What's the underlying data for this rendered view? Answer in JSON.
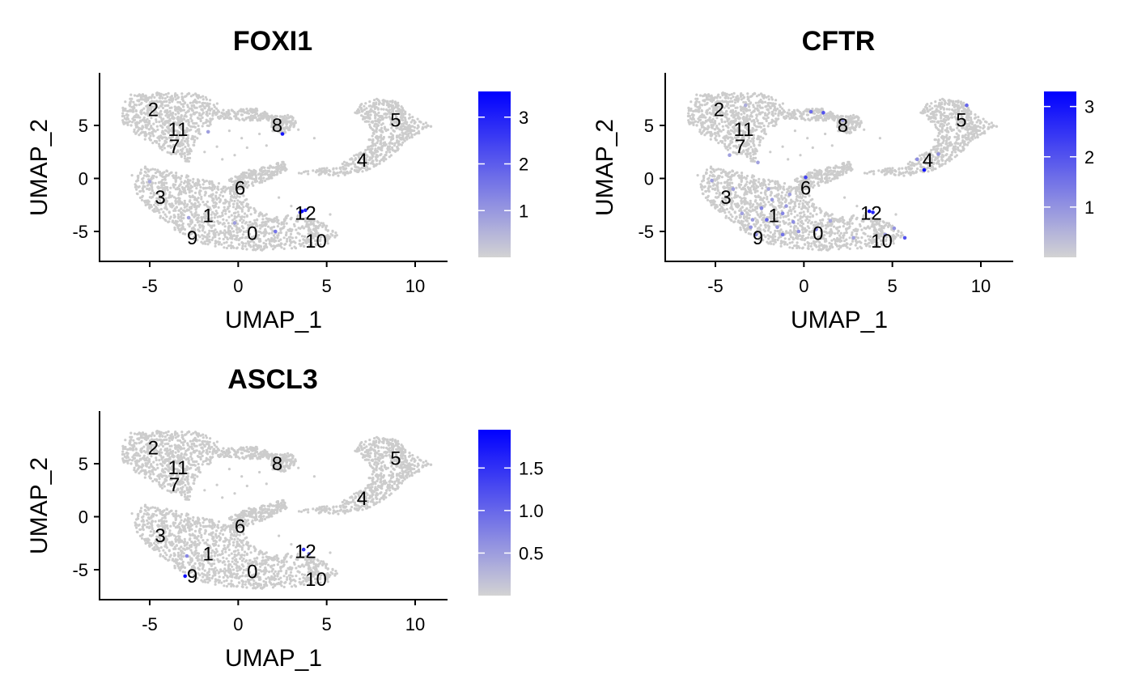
{
  "chart_data": [
    {
      "type": "scatter",
      "title": "FOXI1",
      "xlabel": "UMAP_1",
      "ylabel": "UMAP_2",
      "xlim": [
        -8,
        12
      ],
      "ylim": [
        -7.7,
        9.5
      ],
      "xticks": [
        "-5",
        "0",
        "5",
        "10"
      ],
      "yticks": [
        "-5",
        "0",
        "5"
      ],
      "grid": false,
      "legend": "right",
      "colorbar": {
        "min": 0,
        "max": 3.55,
        "ticks": [
          "1",
          "2",
          "3"
        ],
        "low_color": "#d3d3d3",
        "high_color": "#0000ff"
      },
      "cluster_labels": [
        {
          "label": "0",
          "x": 0.8,
          "y": -5.2
        },
        {
          "label": "1",
          "x": -1.7,
          "y": -3.5
        },
        {
          "label": "2",
          "x": -4.8,
          "y": 6.5
        },
        {
          "label": "3",
          "x": -4.4,
          "y": -1.8
        },
        {
          "label": "4",
          "x": 7.0,
          "y": 1.7
        },
        {
          "label": "5",
          "x": 8.9,
          "y": 5.5
        },
        {
          "label": "6",
          "x": 0.1,
          "y": -0.9
        },
        {
          "label": "7",
          "x": -3.6,
          "y": 3.0
        },
        {
          "label": "8",
          "x": 2.2,
          "y": 5.0
        },
        {
          "label": "9",
          "x": -2.6,
          "y": -5.6
        },
        {
          "label": "10",
          "x": 4.4,
          "y": -5.9
        },
        {
          "label": "11",
          "x": -3.4,
          "y": 4.6
        },
        {
          "label": "12",
          "x": 3.8,
          "y": -3.3
        }
      ],
      "highlights": [
        {
          "x": 2.5,
          "y": 4.2,
          "v": 3.2
        },
        {
          "x": 3.6,
          "y": -3.1,
          "v": 3.4
        },
        {
          "x": 3.8,
          "y": -3.0,
          "v": 3.0
        },
        {
          "x": 3.5,
          "y": -3.2,
          "v": 2.6
        },
        {
          "x": -1.7,
          "y": 4.4,
          "v": 0.9
        },
        {
          "x": -2.8,
          "y": -3.7,
          "v": 0.8
        },
        {
          "x": 2.1,
          "y": -5.0,
          "v": 1.6
        },
        {
          "x": -0.2,
          "y": -4.2,
          "v": 0.9
        },
        {
          "x": -5.0,
          "y": -0.3,
          "v": 0.7
        }
      ]
    },
    {
      "type": "scatter",
      "title": "CFTR",
      "xlabel": "UMAP_1",
      "ylabel": "UMAP_2",
      "xlim": [
        -8,
        12
      ],
      "ylim": [
        -7.7,
        9.5
      ],
      "xticks": [
        "-5",
        "0",
        "5",
        "10"
      ],
      "yticks": [
        "-5",
        "0",
        "5"
      ],
      "grid": false,
      "legend": "right",
      "colorbar": {
        "min": 0,
        "max": 3.3,
        "ticks": [
          "1",
          "2",
          "3"
        ],
        "low_color": "#d3d3d3",
        "high_color": "#0000ff"
      },
      "cluster_labels": [
        {
          "label": "0",
          "x": 0.8,
          "y": -5.2
        },
        {
          "label": "1",
          "x": -1.7,
          "y": -3.5
        },
        {
          "label": "2",
          "x": -4.8,
          "y": 6.5
        },
        {
          "label": "3",
          "x": -4.4,
          "y": -1.8
        },
        {
          "label": "4",
          "x": 7.0,
          "y": 1.7
        },
        {
          "label": "5",
          "x": 8.9,
          "y": 5.5
        },
        {
          "label": "6",
          "x": 0.1,
          "y": -0.9
        },
        {
          "label": "7",
          "x": -3.6,
          "y": 3.0
        },
        {
          "label": "8",
          "x": 2.2,
          "y": 5.0
        },
        {
          "label": "9",
          "x": -2.6,
          "y": -5.6
        },
        {
          "label": "10",
          "x": 4.4,
          "y": -5.9
        },
        {
          "label": "11",
          "x": -3.4,
          "y": 4.6
        },
        {
          "label": "12",
          "x": 3.8,
          "y": -3.3
        }
      ],
      "highlights": [
        {
          "x": 3.7,
          "y": -3.1,
          "v": 3.0
        },
        {
          "x": 3.9,
          "y": -3.2,
          "v": 2.7
        },
        {
          "x": 6.8,
          "y": 0.8,
          "v": 3.1
        },
        {
          "x": 0.1,
          "y": 0.1,
          "v": 2.3
        },
        {
          "x": 1.1,
          "y": 6.2,
          "v": 2.0
        },
        {
          "x": 0.4,
          "y": 6.3,
          "v": 1.6
        },
        {
          "x": 9.2,
          "y": 6.9,
          "v": 1.7
        },
        {
          "x": 5.7,
          "y": -5.6,
          "v": 2.0
        },
        {
          "x": -2.1,
          "y": -3.9,
          "v": 1.7
        },
        {
          "x": -1.2,
          "y": -5.3,
          "v": 1.5
        },
        {
          "x": -2.4,
          "y": -2.8,
          "v": 1.2
        },
        {
          "x": -0.6,
          "y": -4.1,
          "v": 1.1
        },
        {
          "x": -3.0,
          "y": -4.6,
          "v": 1.0
        },
        {
          "x": 0.7,
          "y": -4.8,
          "v": 1.3
        },
        {
          "x": -1.8,
          "y": -2.0,
          "v": 0.9
        },
        {
          "x": -1.0,
          "y": -2.6,
          "v": 0.9
        },
        {
          "x": -3.5,
          "y": -3.3,
          "v": 0.8
        },
        {
          "x": -0.3,
          "y": -5.0,
          "v": 1.0
        },
        {
          "x": -2.7,
          "y": -5.3,
          "v": 1.1
        },
        {
          "x": -1.5,
          "y": -4.6,
          "v": 0.9
        },
        {
          "x": 5.1,
          "y": -4.7,
          "v": 1.0
        },
        {
          "x": 4.6,
          "y": -5.3,
          "v": 0.9
        },
        {
          "x": -4.2,
          "y": 2.2,
          "v": 0.8
        },
        {
          "x": -2.6,
          "y": 1.5,
          "v": 0.8
        },
        {
          "x": 6.4,
          "y": 1.8,
          "v": 1.1
        },
        {
          "x": 7.6,
          "y": 2.3,
          "v": 1.0
        },
        {
          "x": 2.2,
          "y": 5.5,
          "v": 1.0
        },
        {
          "x": -5.2,
          "y": -0.2,
          "v": 0.8
        },
        {
          "x": -4.0,
          "y": -1.0,
          "v": 0.8
        },
        {
          "x": -2.0,
          "y": -1.0,
          "v": 0.7
        },
        {
          "x": -0.8,
          "y": -1.5,
          "v": 0.8
        },
        {
          "x": 1.5,
          "y": -4.0,
          "v": 0.7
        },
        {
          "x": 2.8,
          "y": -5.6,
          "v": 0.8
        },
        {
          "x": -3.3,
          "y": 6.9,
          "v": 0.6
        },
        {
          "x": -1.2,
          "y": -3.3,
          "v": 1.2
        },
        {
          "x": -2.9,
          "y": -3.9,
          "v": 0.9
        }
      ]
    },
    {
      "type": "scatter",
      "title": "ASCL3",
      "xlabel": "UMAP_1",
      "ylabel": "UMAP_2",
      "xlim": [
        -8,
        12
      ],
      "ylim": [
        -7.7,
        9.5
      ],
      "xticks": [
        "-5",
        "0",
        "5",
        "10"
      ],
      "yticks": [
        "-5",
        "0",
        "5"
      ],
      "grid": false,
      "legend": "right",
      "colorbar": {
        "min": 0,
        "max": 1.95,
        "ticks": [
          "0.5",
          "1.0",
          "1.5"
        ],
        "low_color": "#d3d3d3",
        "high_color": "#0000ff"
      },
      "cluster_labels": [
        {
          "label": "0",
          "x": 0.8,
          "y": -5.2
        },
        {
          "label": "1",
          "x": -1.7,
          "y": -3.5
        },
        {
          "label": "2",
          "x": -4.8,
          "y": 6.5
        },
        {
          "label": "3",
          "x": -4.4,
          "y": -1.8
        },
        {
          "label": "4",
          "x": 7.0,
          "y": 1.7
        },
        {
          "label": "5",
          "x": 8.9,
          "y": 5.5
        },
        {
          "label": "6",
          "x": 0.1,
          "y": -0.9
        },
        {
          "label": "7",
          "x": -3.6,
          "y": 3.0
        },
        {
          "label": "8",
          "x": 2.2,
          "y": 5.0
        },
        {
          "label": "9",
          "x": -2.6,
          "y": -5.6
        },
        {
          "label": "10",
          "x": 4.4,
          "y": -5.9
        },
        {
          "label": "11",
          "x": -3.4,
          "y": 4.6
        },
        {
          "label": "12",
          "x": 3.8,
          "y": -3.3
        }
      ],
      "highlights": [
        {
          "x": -3.0,
          "y": -5.6,
          "v": 1.8
        },
        {
          "x": 3.7,
          "y": -3.1,
          "v": 1.5
        },
        {
          "x": 4.0,
          "y": -3.5,
          "v": 0.9
        },
        {
          "x": -2.9,
          "y": -3.7,
          "v": 0.7
        }
      ]
    }
  ]
}
